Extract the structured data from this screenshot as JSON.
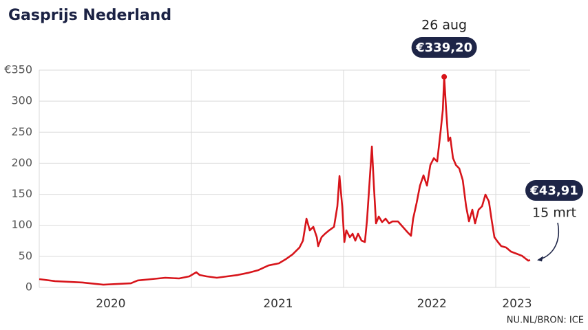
{
  "chart_data": {
    "type": "line",
    "title": "Gasprijs Nederland",
    "source": "NU.NL/BRON: ICE",
    "xlim": [
      2020,
      2023.226
    ],
    "ylim": [
      0,
      350
    ],
    "yticks": [
      0,
      50,
      100,
      150,
      200,
      250,
      300,
      {
        "value": 350,
        "label": "€350"
      }
    ],
    "xgrid": [
      2021,
      2022,
      2023
    ],
    "xticks": [
      {
        "value": 2020.47,
        "label": "2020"
      },
      {
        "value": 2021.57,
        "label": "2021"
      },
      {
        "value": 2022.58,
        "label": "2022"
      },
      {
        "value": 2023.14,
        "label": "2023"
      }
    ],
    "grid": true,
    "annotations": [
      "26 aug",
      "15 mrt"
    ],
    "x": [
      2020.0,
      2020.104,
      2020.195,
      2020.285,
      2020.376,
      2020.421,
      2020.511,
      2020.602,
      2020.647,
      2020.738,
      2020.828,
      2020.919,
      2020.986,
      2021.032,
      2021.054,
      2021.1,
      2021.167,
      2021.235,
      2021.303,
      2021.371,
      2021.439,
      2021.507,
      2021.575,
      2021.62,
      2021.665,
      2021.71,
      2021.733,
      2021.756,
      2021.778,
      2021.801,
      2021.824,
      2021.833,
      2021.855,
      2021.878,
      2021.905,
      2021.937,
      2021.959,
      2021.973,
      2021.991,
      2022.005,
      2022.018,
      2022.041,
      2022.059,
      2022.077,
      2022.095,
      2022.118,
      2022.14,
      2022.154,
      2022.172,
      2022.186,
      2022.199,
      2022.213,
      2022.231,
      2022.253,
      2022.276,
      2022.299,
      2022.321,
      2022.357,
      2022.389,
      2022.421,
      2022.443,
      2022.457,
      2022.48,
      2022.502,
      2022.525,
      2022.548,
      2022.57,
      2022.593,
      2022.615,
      2022.638,
      2022.652,
      2022.661,
      2022.674,
      2022.688,
      2022.701,
      2022.719,
      2022.738,
      2022.76,
      2022.783,
      2022.805,
      2022.824,
      2022.846,
      2022.864,
      2022.887,
      2022.91,
      2022.932,
      2022.955,
      2022.973,
      2022.991,
      2023.014,
      2023.036,
      2023.068,
      2023.1,
      2023.136,
      2023.172,
      2023.195,
      2023.213,
      2023.226
    ],
    "series": [
      {
        "name": "Gasprijs",
        "color": "#d7141a",
        "values": [
          13.3,
          10.0,
          8.9,
          7.8,
          5.5,
          4.4,
          5.5,
          6.6,
          11.1,
          13.3,
          15.5,
          14.4,
          17.7,
          24.4,
          19.9,
          17.7,
          15.5,
          17.7,
          19.9,
          23.3,
          27.7,
          35.4,
          38.8,
          45.4,
          53.2,
          64.2,
          75.3,
          110.7,
          91.9,
          97.5,
          80.8,
          66.4,
          80.8,
          86.4,
          91.9,
          97.5,
          130.7,
          179.4,
          130.7,
          73.1,
          91.9,
          80.8,
          86.4,
          75.3,
          86.4,
          75.3,
          73.1,
          108.5,
          175.0,
          227.0,
          163.9,
          103.0,
          114.1,
          105.2,
          110.7,
          103.0,
          106.3,
          106.3,
          97.5,
          88.6,
          83.1,
          110.7,
          136.2,
          163.9,
          180.5,
          163.9,
          197.1,
          208.2,
          202.7,
          252.5,
          285.7,
          339.2,
          285.7,
          235.9,
          241.4,
          208.2,
          197.1,
          191.6,
          172.8,
          130.7,
          106.3,
          125.1,
          103.0,
          125.1,
          130.7,
          149.5,
          138.4,
          108.5,
          80.8,
          73.1,
          66.4,
          64.2,
          57.6,
          54.3,
          50.9,
          46.5,
          43.1,
          43.91
        ],
        "value_labels": [
          null,
          null,
          null,
          null,
          null,
          null,
          null,
          null,
          null,
          null,
          null,
          null,
          null,
          null,
          null,
          null,
          null,
          null,
          null,
          null,
          null,
          null,
          null,
          null,
          null,
          null,
          null,
          null,
          null,
          null,
          null,
          null,
          null,
          null,
          null,
          null,
          null,
          null,
          null,
          null,
          null,
          null,
          null,
          null,
          null,
          null,
          null,
          null,
          null,
          null,
          null,
          null,
          null,
          null,
          null,
          null,
          null,
          null,
          null,
          null,
          null,
          null,
          null,
          null,
          null,
          null,
          null,
          null,
          null,
          null,
          null,
          "€339,20",
          null,
          null,
          null,
          null,
          null,
          null,
          null,
          null,
          null,
          null,
          null,
          null,
          null,
          null,
          null,
          null,
          null,
          null,
          null,
          null,
          null,
          null,
          null,
          null,
          null,
          "€43,91"
        ]
      }
    ]
  }
}
